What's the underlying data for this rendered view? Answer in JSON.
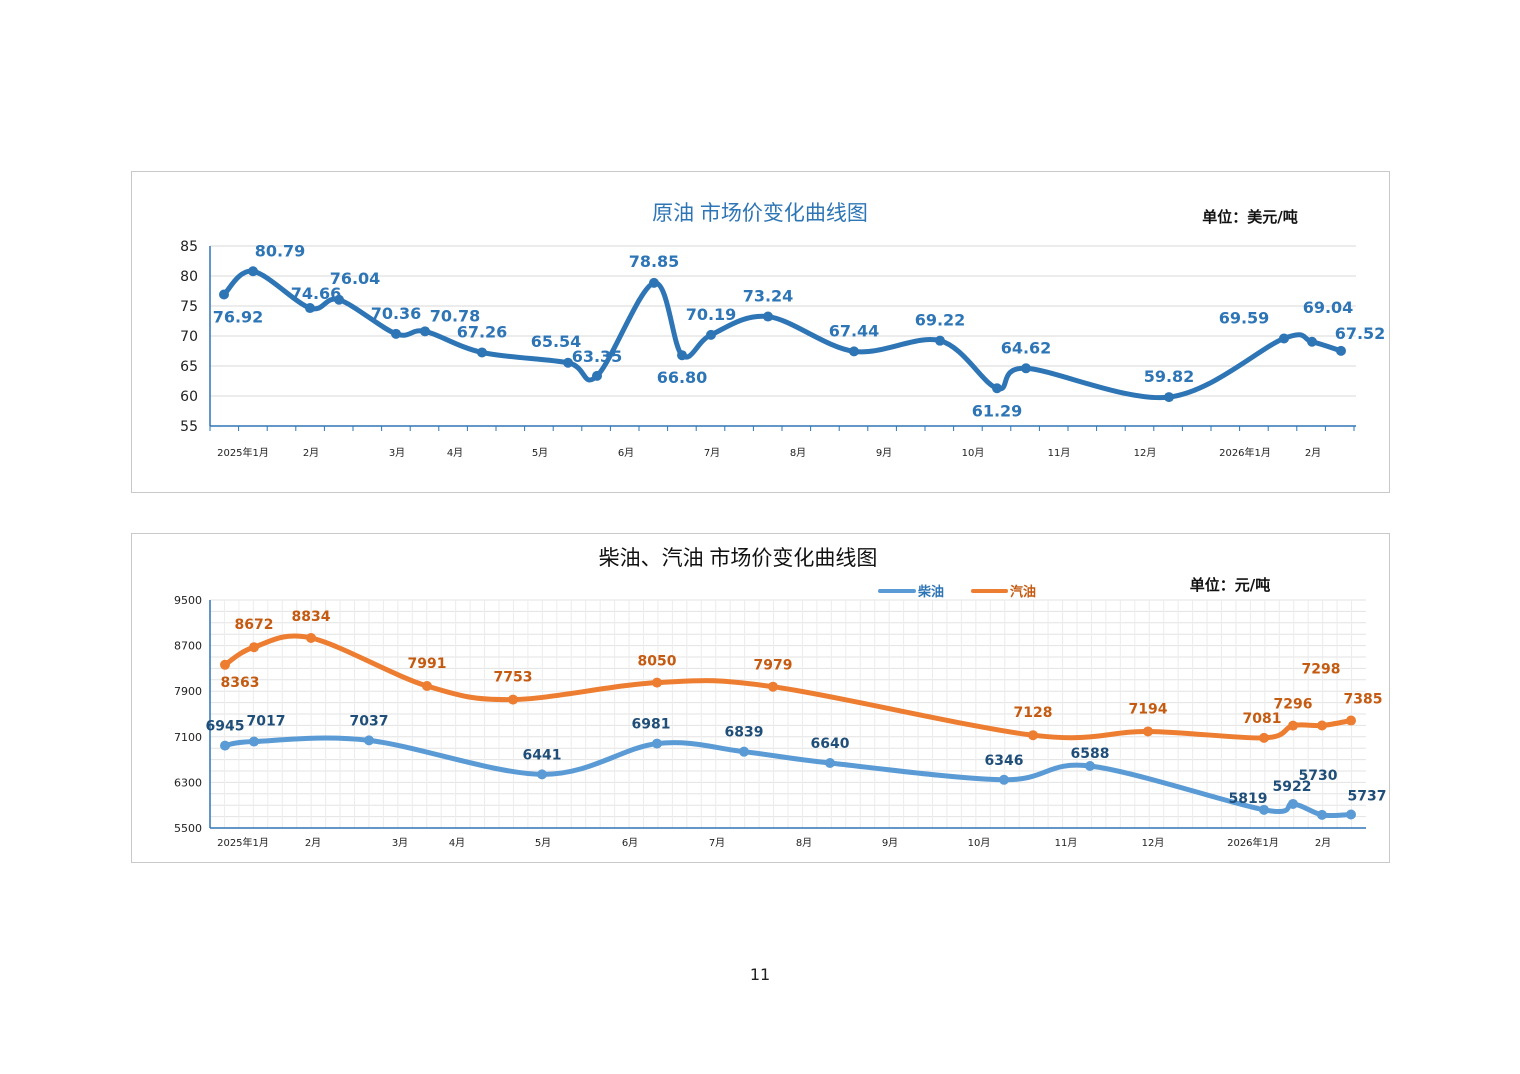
{
  "page_number": "11",
  "chart_data": [
    {
      "type": "line",
      "title": "原油  市场价变化曲线图",
      "unit": "单位：美元/吨",
      "ylim": [
        55,
        85
      ],
      "yticks": [
        55,
        60,
        65,
        70,
        75,
        80,
        85
      ],
      "month_labels": [
        "2025年1月",
        "2月",
        "3月",
        "4月",
        "5月",
        "6月",
        "7月",
        "8月",
        "9月",
        "10月",
        "11月",
        "12月",
        "2026年1月",
        "2月"
      ],
      "grid": "horizontal",
      "colors": {
        "line": "#2e75b6",
        "label": "#2e75b6",
        "title": "#2e75b6"
      },
      "series": [
        {
          "values": [
            76.92,
            80.79,
            74.66,
            76.04,
            70.36,
            70.78,
            67.26,
            65.54,
            63.35,
            78.85,
            66.8,
            70.19,
            73.24,
            67.44,
            69.22,
            61.29,
            64.62,
            59.82,
            69.59,
            69.04,
            67.52
          ],
          "labels": [
            "76.92",
            "80.79",
            "74.66",
            "76.04",
            "70.36",
            "70.78",
            "67.26",
            "65.54",
            "63.35",
            "78.85",
            "66.80",
            "70.19",
            "73.24",
            "67.44",
            "69.22",
            "61.29",
            "64.62",
            "59.82",
            "69.59",
            "69.04",
            "67.52"
          ]
        }
      ]
    },
    {
      "type": "line",
      "title": "柴油、汽油  市场价变化曲线图",
      "unit": "单位：元/吨",
      "ylim": [
        5500,
        9500
      ],
      "yticks": [
        5500,
        6300,
        7100,
        7900,
        8700,
        9500
      ],
      "month_labels": [
        "2025年1月",
        "2月",
        "3月",
        "4月",
        "5月",
        "6月",
        "7月",
        "8月",
        "9月",
        "10月",
        "11月",
        "12月",
        "2026年1月",
        "2月"
      ],
      "legend": "top-right",
      "grid": "both",
      "series": [
        {
          "name": "柴油",
          "color": "#5b9bd5",
          "label_color": "#1f4e79",
          "values": [
            6945,
            7017,
            7037,
            6441,
            6981,
            6839,
            6640,
            6346,
            6588,
            5819,
            5922,
            5730,
            5737
          ],
          "labels": [
            "6945",
            "7017",
            "7037",
            "6441",
            "6981",
            "6839",
            "6640",
            "6346",
            "6588",
            "5819",
            "5922",
            "5730",
            "5737"
          ]
        },
        {
          "name": "汽油",
          "color": "#ed7d31",
          "label_color": "#c55a11",
          "values": [
            8363,
            8672,
            8834,
            7991,
            7753,
            8050,
            7979,
            7128,
            7194,
            7081,
            7296,
            7298,
            7385
          ],
          "labels": [
            "8363",
            "8672",
            "8834",
            "7991",
            "7753",
            "8050",
            "7979",
            "7128",
            "7194",
            "7081",
            "7296",
            "7298",
            "7385"
          ]
        }
      ]
    }
  ]
}
